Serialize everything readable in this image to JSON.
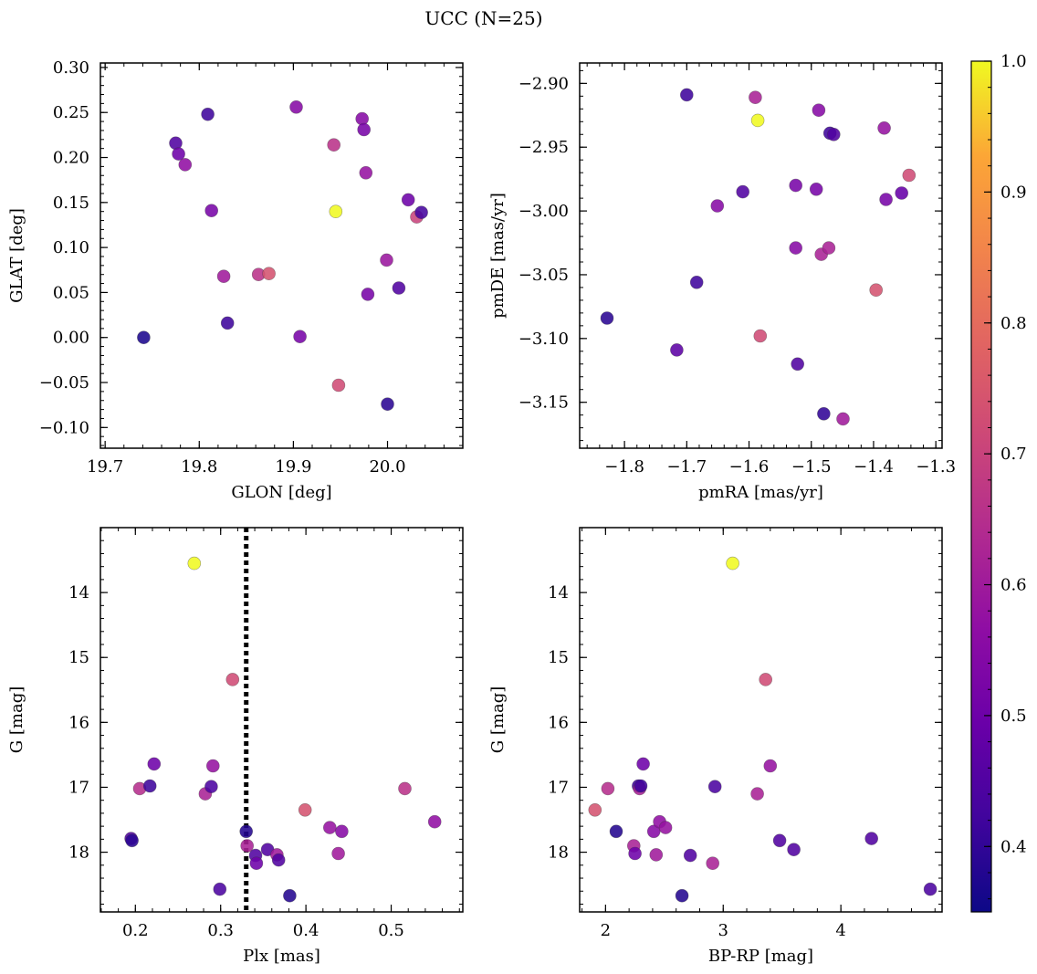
{
  "figure": {
    "title": "UCC (N=25)"
  },
  "chart_data": [
    {
      "type": "scatter",
      "xlabel": "GLON [deg]",
      "ylabel": "GLAT [deg]",
      "xlim": [
        19.695,
        20.08
      ],
      "ylim": [
        -0.123,
        0.305
      ],
      "xticks": [
        19.7,
        19.8,
        19.9,
        20.0
      ],
      "xtick_labels": [
        "19.7",
        "19.8",
        "19.9",
        "20.0"
      ],
      "yticks": [
        -0.1,
        -0.05,
        0.0,
        0.05,
        0.1,
        0.15,
        0.2,
        0.25,
        0.3
      ],
      "ytick_labels": [
        "−0.10",
        "−0.05",
        "0.00",
        "0.05",
        "0.10",
        "0.15",
        "0.20",
        "0.25",
        "0.30"
      ],
      "x": [
        19.741,
        19.809,
        19.775,
        19.778,
        19.785,
        19.813,
        19.826,
        19.83,
        19.863,
        19.874,
        19.903,
        19.907,
        19.943,
        19.945,
        19.948,
        19.973,
        19.975,
        19.977,
        19.979,
        19.999,
        20.0,
        20.012,
        20.022,
        20.031,
        20.036
      ],
      "y": [
        0.0,
        0.248,
        0.216,
        0.204,
        0.192,
        0.141,
        0.068,
        0.016,
        0.07,
        0.071,
        0.256,
        0.001,
        0.214,
        0.14,
        -0.053,
        0.243,
        0.231,
        0.183,
        0.048,
        0.086,
        -0.074,
        0.055,
        0.153,
        0.134,
        0.139
      ],
      "c": [
        0.37,
        0.42,
        0.45,
        0.5,
        0.57,
        0.52,
        0.6,
        0.42,
        0.66,
        0.74,
        0.55,
        0.52,
        0.66,
        1.0,
        0.72,
        0.55,
        0.52,
        0.58,
        0.52,
        0.59,
        0.39,
        0.45,
        0.5,
        0.7,
        0.43
      ]
    },
    {
      "type": "scatter",
      "xlabel": "pmRA [mas/yr]",
      "ylabel": "pmDE [mas/yr]",
      "xlim": [
        -1.872,
        -1.29
      ],
      "ylim": [
        -3.186,
        -2.884
      ],
      "xticks": [
        -1.8,
        -1.7,
        -1.6,
        -1.5,
        -1.4,
        -1.3
      ],
      "xtick_labels": [
        "−1.8",
        "−1.7",
        "−1.6",
        "−1.5",
        "−1.4",
        "−1.3"
      ],
      "yticks": [
        -3.15,
        -3.1,
        -3.05,
        -3.0,
        -2.95,
        -2.9
      ],
      "ytick_labels": [
        "−3.15",
        "−3.10",
        "−3.05",
        "−3.00",
        "−2.95",
        "−2.90"
      ],
      "x": [
        -1.828,
        -1.716,
        -1.7,
        -1.684,
        -1.651,
        -1.61,
        -1.59,
        -1.586,
        -1.582,
        -1.525,
        -1.525,
        -1.522,
        -1.492,
        -1.488,
        -1.484,
        -1.48,
        -1.472,
        -1.47,
        -1.464,
        -1.449,
        -1.396,
        -1.383,
        -1.38,
        -1.355,
        -1.343
      ],
      "y": [
        -3.084,
        -3.109,
        -2.909,
        -3.056,
        -2.996,
        -2.985,
        -2.911,
        -2.929,
        -3.098,
        -2.98,
        -3.029,
        -3.12,
        -2.983,
        -2.921,
        -3.034,
        -3.159,
        -3.029,
        -2.939,
        -2.94,
        -3.163,
        -3.062,
        -2.935,
        -2.991,
        -2.986,
        -2.972
      ],
      "c": [
        0.39,
        0.47,
        0.42,
        0.42,
        0.55,
        0.45,
        0.62,
        1.0,
        0.72,
        0.52,
        0.55,
        0.45,
        0.52,
        0.55,
        0.62,
        0.4,
        0.62,
        0.42,
        0.45,
        0.6,
        0.74,
        0.58,
        0.52,
        0.49,
        0.72
      ]
    },
    {
      "type": "scatter",
      "xlabel": "Plx [mas]",
      "ylabel": "G [mag]",
      "xlim": [
        0.159,
        0.584
      ],
      "ylim": [
        18.92,
        13.0
      ],
      "y_inverted": true,
      "vline": {
        "x": 0.33,
        "style": "dotted"
      },
      "xticks": [
        0.2,
        0.3,
        0.4,
        0.5
      ],
      "xtick_labels": [
        "0.2",
        "0.3",
        "0.4",
        "0.5"
      ],
      "yticks": [
        14,
        15,
        16,
        17,
        18
      ],
      "ytick_labels": [
        "14",
        "15",
        "16",
        "17",
        "18"
      ],
      "x": [
        0.195,
        0.196,
        0.205,
        0.217,
        0.222,
        0.269,
        0.282,
        0.289,
        0.291,
        0.299,
        0.314,
        0.33,
        0.331,
        0.341,
        0.342,
        0.355,
        0.366,
        0.368,
        0.381,
        0.399,
        0.428,
        0.438,
        0.442,
        0.516,
        0.551
      ],
      "y": [
        17.79,
        17.82,
        17.02,
        16.98,
        16.64,
        13.55,
        17.1,
        16.99,
        16.67,
        18.57,
        15.34,
        17.68,
        17.9,
        18.05,
        18.17,
        17.96,
        18.04,
        18.12,
        18.67,
        17.35,
        17.62,
        18.02,
        17.68,
        17.02,
        17.53
      ],
      "c": [
        0.45,
        0.39,
        0.65,
        0.42,
        0.5,
        1.0,
        0.62,
        0.44,
        0.58,
        0.44,
        0.72,
        0.38,
        0.62,
        0.45,
        0.5,
        0.45,
        0.6,
        0.45,
        0.38,
        0.74,
        0.58,
        0.6,
        0.55,
        0.66,
        0.57
      ]
    },
    {
      "type": "scatter",
      "xlabel": "BP-RP [mag]",
      "ylabel": "G [mag]",
      "xlim": [
        1.78,
        4.86
      ],
      "ylim": [
        18.92,
        13.0
      ],
      "y_inverted": true,
      "xticks": [
        2,
        3,
        4
      ],
      "xtick_labels": [
        "2",
        "3",
        "4"
      ],
      "yticks": [
        14,
        15,
        16,
        17,
        18
      ],
      "ytick_labels": [
        "14",
        "15",
        "16",
        "17",
        "18"
      ],
      "x": [
        1.91,
        2.02,
        2.09,
        2.24,
        2.25,
        2.28,
        2.29,
        2.32,
        2.41,
        2.43,
        2.46,
        2.51,
        2.65,
        2.72,
        2.91,
        2.93,
        3.08,
        3.29,
        3.36,
        3.4,
        3.48,
        3.6,
        4.26,
        4.76,
        2.3
      ],
      "y": [
        17.35,
        17.02,
        17.68,
        17.9,
        18.02,
        16.98,
        17.02,
        16.64,
        17.68,
        18.04,
        17.53,
        17.62,
        18.67,
        18.05,
        18.17,
        16.99,
        13.55,
        17.1,
        15.34,
        16.67,
        17.82,
        17.96,
        17.79,
        18.57,
        16.98
      ],
      "c": [
        0.74,
        0.65,
        0.38,
        0.62,
        0.5,
        0.42,
        0.62,
        0.5,
        0.55,
        0.6,
        0.57,
        0.58,
        0.38,
        0.45,
        0.62,
        0.44,
        1.0,
        0.62,
        0.72,
        0.58,
        0.45,
        0.45,
        0.45,
        0.44,
        0.42
      ]
    }
  ],
  "colorbar": {
    "cmap": "plasma",
    "vmin": 0.35,
    "vmax": 1.0,
    "ticks": [
      0.4,
      0.5,
      0.6,
      0.7,
      0.8,
      0.9,
      1.0
    ],
    "tick_labels": [
      "0.4",
      "0.5",
      "0.6",
      "0.7",
      "0.8",
      "0.9",
      "1.0"
    ]
  }
}
